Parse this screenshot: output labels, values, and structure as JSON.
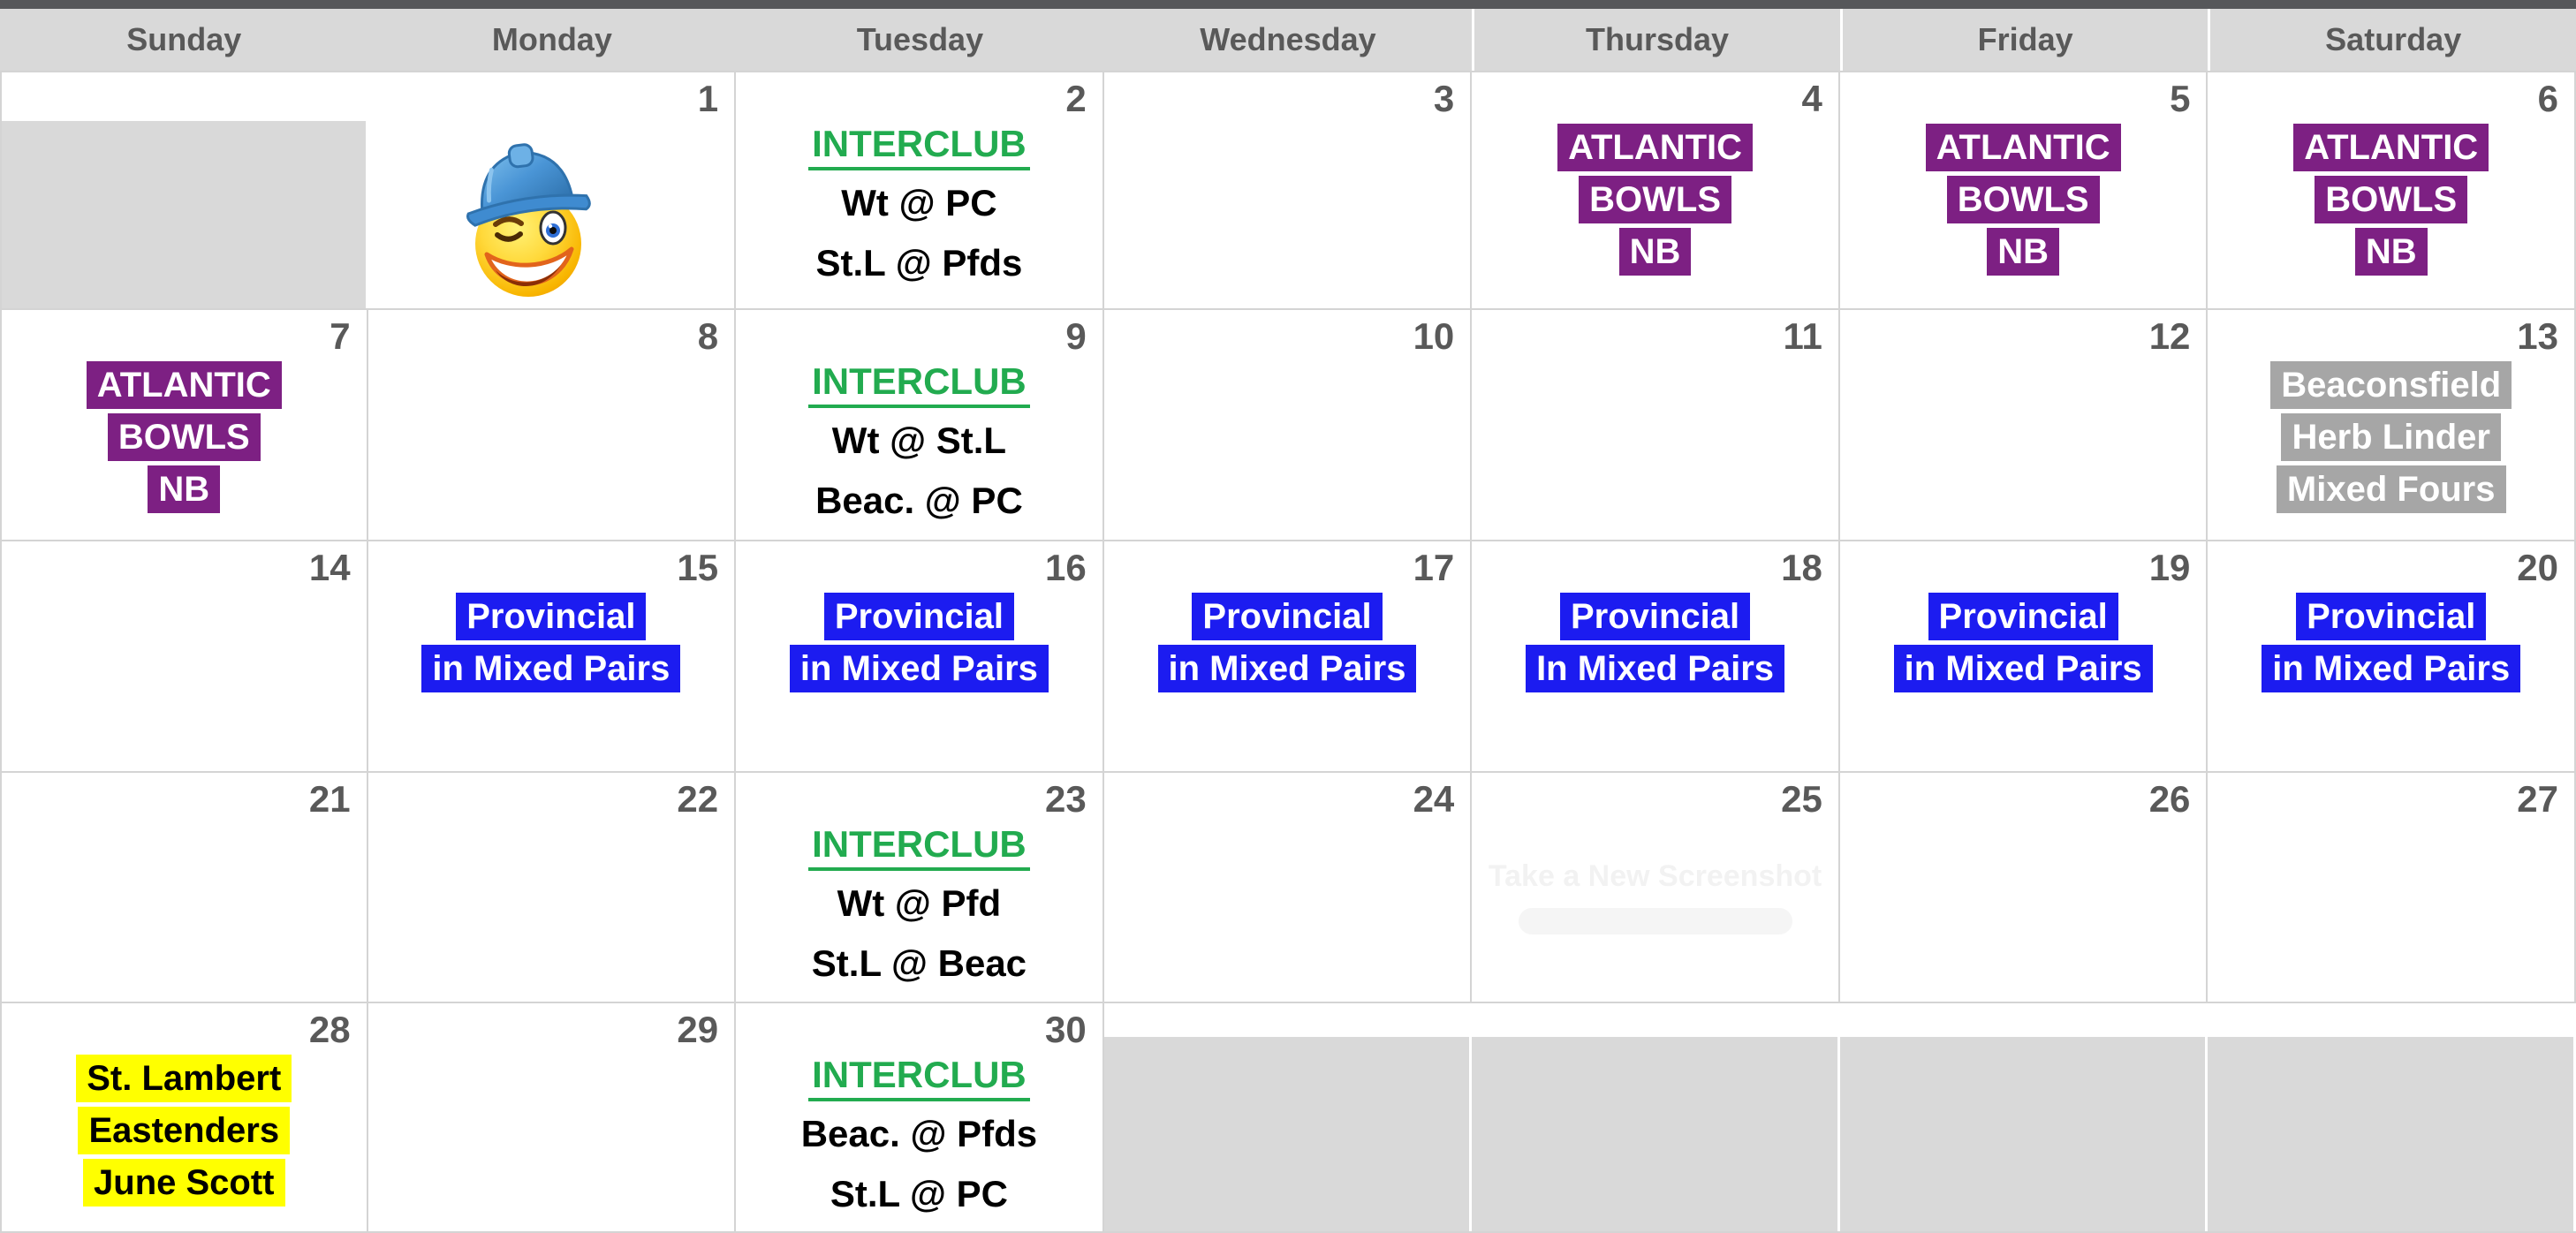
{
  "calendar": {
    "day_headers": [
      "Sunday",
      "Monday",
      "Tuesday",
      "Wednesday",
      "Thursday",
      "Friday",
      "Saturday"
    ],
    "weeks": [
      {
        "cells": [
          {
            "day": "",
            "out": true,
            "events": []
          },
          {
            "day": "1",
            "out": false,
            "events": [
              {
                "style": "emoji",
                "icon": "hardhat-wink-emoji",
                "lines": []
              }
            ]
          },
          {
            "day": "2",
            "out": false,
            "events": [
              {
                "style": "green-link",
                "lines": [
                  "INTERCLUB"
                ]
              },
              {
                "style": "plain",
                "lines": [
                  "Wt @ PC",
                  "St.L @ Pfds"
                ]
              }
            ]
          },
          {
            "day": "3",
            "out": false,
            "events": []
          },
          {
            "day": "4",
            "out": false,
            "events": [
              {
                "style": "purple",
                "lines": [
                  "ATLANTIC",
                  "BOWLS",
                  "NB"
                ]
              }
            ]
          },
          {
            "day": "5",
            "out": false,
            "events": [
              {
                "style": "purple",
                "lines": [
                  "ATLANTIC",
                  "BOWLS",
                  "NB"
                ]
              }
            ]
          },
          {
            "day": "6",
            "out": false,
            "events": [
              {
                "style": "purple",
                "lines": [
                  "ATLANTIC",
                  "BOWLS",
                  "NB"
                ]
              }
            ]
          }
        ]
      },
      {
        "cells": [
          {
            "day": "7",
            "out": false,
            "events": [
              {
                "style": "purple",
                "lines": [
                  "ATLANTIC",
                  "BOWLS",
                  "NB"
                ]
              }
            ]
          },
          {
            "day": "8",
            "out": false,
            "events": []
          },
          {
            "day": "9",
            "out": false,
            "events": [
              {
                "style": "green-link",
                "lines": [
                  "INTERCLUB"
                ]
              },
              {
                "style": "plain",
                "lines": [
                  "Wt @ St.L",
                  "Beac. @ PC"
                ]
              }
            ]
          },
          {
            "day": "10",
            "out": false,
            "events": []
          },
          {
            "day": "11",
            "out": false,
            "events": []
          },
          {
            "day": "12",
            "out": false,
            "events": []
          },
          {
            "day": "13",
            "out": false,
            "events": [
              {
                "style": "gray",
                "lines": [
                  "Beaconsfield",
                  "Herb Linder",
                  "Mixed Fours"
                ]
              }
            ]
          }
        ]
      },
      {
        "cells": [
          {
            "day": "14",
            "out": false,
            "events": []
          },
          {
            "day": "15",
            "out": false,
            "events": [
              {
                "style": "blue",
                "lines": [
                  "Provincial",
                  "in Mixed Pairs"
                ]
              }
            ]
          },
          {
            "day": "16",
            "out": false,
            "events": [
              {
                "style": "blue",
                "lines": [
                  "Provincial",
                  "in Mixed Pairs"
                ]
              }
            ]
          },
          {
            "day": "17",
            "out": false,
            "events": [
              {
                "style": "blue",
                "lines": [
                  "Provincial",
                  "in Mixed Pairs"
                ]
              }
            ]
          },
          {
            "day": "18",
            "out": false,
            "events": [
              {
                "style": "blue",
                "lines": [
                  "Provincial",
                  "In Mixed Pairs"
                ]
              }
            ]
          },
          {
            "day": "19",
            "out": false,
            "events": [
              {
                "style": "blue",
                "lines": [
                  "Provincial",
                  "in Mixed Pairs"
                ]
              }
            ]
          },
          {
            "day": "20",
            "out": false,
            "events": [
              {
                "style": "blue",
                "lines": [
                  "Provincial",
                  "in Mixed Pairs"
                ]
              }
            ]
          }
        ]
      },
      {
        "cells": [
          {
            "day": "21",
            "out": false,
            "events": []
          },
          {
            "day": "22",
            "out": false,
            "events": []
          },
          {
            "day": "23",
            "out": false,
            "events": [
              {
                "style": "green-link",
                "lines": [
                  "INTERCLUB"
                ]
              },
              {
                "style": "plain",
                "lines": [
                  "Wt @ Pfd",
                  "St.L @ Beac"
                ]
              }
            ]
          },
          {
            "day": "24",
            "out": false,
            "events": []
          },
          {
            "day": "25",
            "out": false,
            "events": [
              {
                "style": "watermark",
                "lines": [
                  "Take a New Screenshot"
                ]
              }
            ]
          },
          {
            "day": "26",
            "out": false,
            "events": []
          },
          {
            "day": "27",
            "out": false,
            "events": []
          }
        ]
      },
      {
        "cells": [
          {
            "day": "28",
            "out": false,
            "events": [
              {
                "style": "yellow",
                "lines": [
                  "St. Lambert",
                  "Eastenders",
                  "June Scott"
                ]
              }
            ]
          },
          {
            "day": "29",
            "out": false,
            "events": []
          },
          {
            "day": "30",
            "out": false,
            "events": [
              {
                "style": "green-link",
                "lines": [
                  "INTERCLUB"
                ]
              },
              {
                "style": "plain",
                "lines": [
                  "Beac. @ Pfds",
                  "St.L @ PC"
                ]
              }
            ]
          },
          {
            "day": "",
            "out": true,
            "events": []
          },
          {
            "day": "",
            "out": true,
            "events": []
          },
          {
            "day": "",
            "out": true,
            "events": []
          },
          {
            "day": "",
            "out": true,
            "events": []
          }
        ]
      }
    ]
  },
  "icons": {
    "hardhat_wink_emoji": "winking-smiley-face-with-blue-hard-hat"
  },
  "colors": {
    "highlight_purple": "#7d2083",
    "highlight_blue": "#1c1cf0",
    "highlight_gray": "#a6a6a6",
    "highlight_yellow": "#ffff00",
    "interclub_green": "#22ab4f",
    "header_bg": "#d9d9d9",
    "header_text": "#595959",
    "top_strip": "#56575a",
    "out_of_month_bg": "#d9d9d9",
    "grid_border": "#d4d4d4",
    "day_number": "#595959"
  }
}
